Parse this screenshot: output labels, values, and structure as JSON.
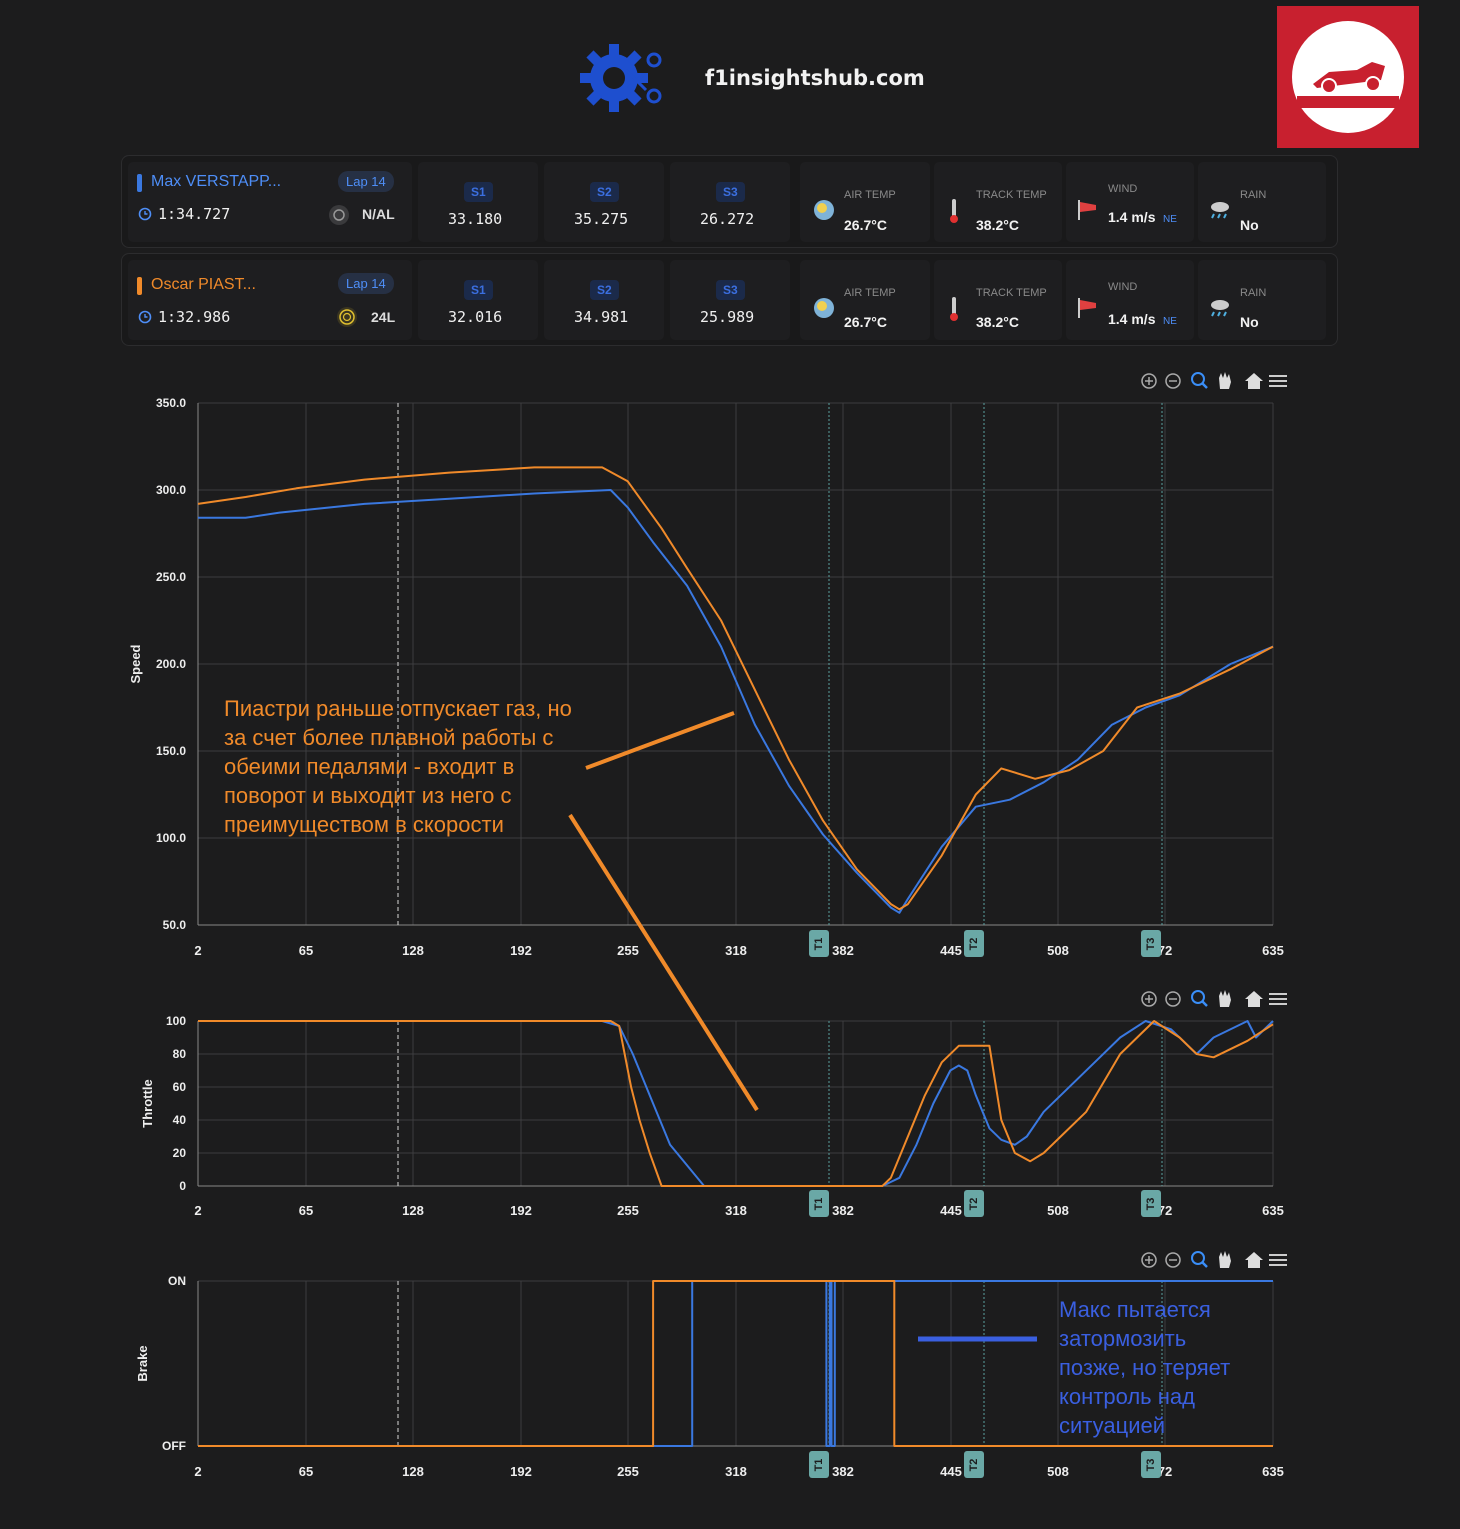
{
  "site": "f1insightshub.com",
  "drivers": [
    {
      "name": "Max VERSTAPP...",
      "lap": "Lap 14",
      "time": "1:34.727",
      "tyre": "N/AL",
      "color": "#3a78e0",
      "s1": "33.180",
      "s2": "35.275",
      "s3": "26.272",
      "air_label": "AIR TEMP",
      "air": "26.7°C",
      "track_label": "TRACK TEMP",
      "track": "38.2°C",
      "wind_label": "WIND",
      "wind": "1.4 m/s",
      "wind_dir": "NE",
      "rain_label": "RAIN",
      "rain": "No"
    },
    {
      "name": "Oscar PIAST...",
      "lap": "Lap 14",
      "time": "1:32.986",
      "tyre": "24L",
      "color": "#f08a2a",
      "s1": "32.016",
      "s2": "34.981",
      "s3": "25.989",
      "air_label": "AIR TEMP",
      "air": "26.7°C",
      "track_label": "TRACK TEMP",
      "track": "38.2°C",
      "wind_label": "WIND",
      "wind": "1.4 m/s",
      "wind_dir": "NE",
      "rain_label": "RAIN",
      "rain": "No"
    }
  ],
  "sector_labels": [
    "S1",
    "S2",
    "S3"
  ],
  "annotations": {
    "orange": [
      "Пиастри раньше отпускает газ, но",
      "за счет более плавной работы с",
      "обеими педалями - входит в",
      "поворот и выходит из него с",
      "преимуществом в скорости"
    ],
    "blue": [
      "Макс пытается",
      "затормозить",
      "позже, но теряет",
      "контроль над",
      "ситуацией"
    ]
  },
  "chart_data": [
    {
      "type": "line",
      "ylabel": "Speed",
      "ylim": [
        50,
        350
      ],
      "yticks": [
        "350.0",
        "300.0",
        "250.0",
        "200.0",
        "150.0",
        "100.0",
        "50.0"
      ],
      "xlim": [
        2,
        635
      ],
      "xticks": [
        "2",
        "65",
        "128",
        "192",
        "255",
        "318",
        "382",
        "445",
        "508",
        "72",
        "635"
      ],
      "markers": [
        "T1",
        "T2",
        "T3"
      ],
      "series": [
        {
          "color": "#3a78e0",
          "x": [
            2,
            30,
            50,
            100,
            150,
            200,
            245,
            255,
            270,
            290,
            310,
            330,
            350,
            370,
            390,
            410,
            415,
            420,
            440,
            460,
            480,
            500,
            520,
            540,
            560,
            580,
            610,
            635
          ],
          "y": [
            284,
            284,
            287,
            292,
            295,
            298,
            300,
            290,
            270,
            245,
            210,
            165,
            130,
            102,
            80,
            60,
            57,
            65,
            95,
            118,
            122,
            132,
            145,
            165,
            175,
            182,
            200,
            210
          ]
        },
        {
          "color": "#f08a2a",
          "x": [
            2,
            30,
            60,
            100,
            150,
            200,
            225,
            240,
            255,
            275,
            290,
            310,
            330,
            350,
            370,
            390,
            410,
            415,
            420,
            440,
            460,
            475,
            495,
            515,
            535,
            555,
            580,
            610,
            635
          ],
          "y": [
            292,
            296,
            301,
            306,
            310,
            313,
            313,
            313,
            305,
            278,
            255,
            225,
            185,
            145,
            110,
            82,
            62,
            59,
            62,
            90,
            125,
            140,
            134,
            139,
            150,
            175,
            183,
            197,
            210
          ]
        }
      ]
    },
    {
      "type": "line",
      "ylabel": "Throttle",
      "ylim": [
        0,
        100
      ],
      "yticks": [
        "100",
        "80",
        "60",
        "40",
        "20",
        "0"
      ],
      "xlim": [
        2,
        635
      ],
      "xticks": [
        "2",
        "65",
        "128",
        "192",
        "255",
        "318",
        "382",
        "445",
        "508",
        "72",
        "635"
      ],
      "markers": [
        "T1",
        "T2",
        "T3"
      ],
      "series": [
        {
          "color": "#3a78e0",
          "x": [
            2,
            240,
            250,
            258,
            268,
            280,
            300,
            320,
            360,
            405,
            415,
            425,
            435,
            445,
            450,
            455,
            460,
            468,
            475,
            483,
            490,
            500,
            510,
            530,
            545,
            560,
            575,
            590,
            600,
            620,
            625,
            635
          ],
          "y": [
            100,
            100,
            97,
            80,
            55,
            25,
            0,
            0,
            0,
            0,
            5,
            25,
            50,
            70,
            73,
            70,
            55,
            35,
            28,
            25,
            30,
            45,
            55,
            75,
            90,
            100,
            95,
            80,
            90,
            100,
            90,
            100
          ]
        },
        {
          "color": "#f08a2a",
          "x": [
            2,
            235,
            245,
            250,
            257,
            262,
            268,
            275,
            300,
            320,
            340,
            405,
            410,
            420,
            430,
            440,
            450,
            458,
            468,
            475,
            483,
            492,
            500,
            510,
            525,
            545,
            565,
            580,
            590,
            600,
            620,
            635
          ],
          "y": [
            100,
            100,
            100,
            97,
            60,
            40,
            20,
            0,
            0,
            0,
            0,
            0,
            5,
            30,
            55,
            75,
            85,
            85,
            85,
            40,
            20,
            15,
            20,
            30,
            45,
            80,
            100,
            90,
            80,
            78,
            88,
            98
          ]
        }
      ]
    },
    {
      "type": "line",
      "ylabel": "Brake",
      "ylim": [
        0,
        1
      ],
      "yticks": [
        "ON",
        "OFF"
      ],
      "xlim": [
        2,
        635
      ],
      "xticks": [
        "2",
        "65",
        "128",
        "192",
        "255",
        "318",
        "382",
        "445",
        "508",
        "72",
        "635"
      ],
      "markers": [
        "T1",
        "T2",
        "T3"
      ],
      "series": [
        {
          "color": "#3a78e0",
          "x": [
            2,
            271,
            271,
            293,
            293,
            372,
            372,
            374,
            374,
            375,
            375,
            377,
            377,
            635
          ],
          "y": [
            0,
            0,
            0,
            0,
            1,
            1,
            0,
            0,
            1,
            1,
            0,
            0,
            1,
            1
          ]
        },
        {
          "color": "#f08a2a",
          "x": [
            2,
            270,
            270,
            412,
            412,
            635
          ],
          "y": [
            0,
            0,
            1,
            1,
            0,
            0
          ]
        }
      ]
    }
  ]
}
